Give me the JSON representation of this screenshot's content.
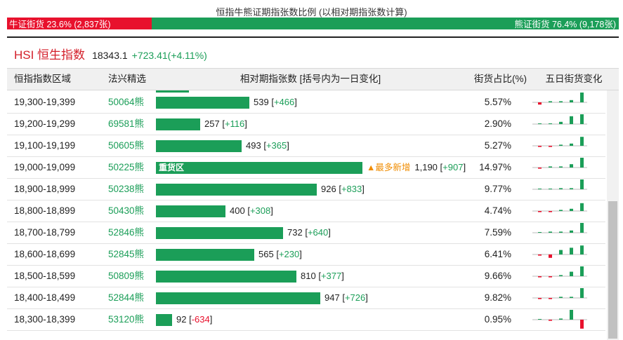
{
  "ratio": {
    "title": "恒指牛熊证期指张数比例 (以相对期指张数计算)",
    "bull_label": "牛证街货 23.6% (2,837张)",
    "bear_label": "熊证街货 76.4% (9,178张)",
    "bull_share": 0.236,
    "colors": {
      "bull": "#e8112d",
      "bear": "#1b9e58"
    }
  },
  "index": {
    "name": "HSI 恒生指数",
    "value": "18343.1",
    "change": "+723.41(+4.11%)"
  },
  "table": {
    "headers": {
      "range": "恒指指数区域",
      "code": "法兴精选",
      "count": "相对期指张数 [括号内为一日变化]",
      "share": "街货占比(%)",
      "spark": "五日街货变化"
    },
    "max_contracts": 1190,
    "rows": [
      {
        "range": "19,300-19,399",
        "code": "50064熊",
        "contracts": 539,
        "contracts_label": "539",
        "change": "+466",
        "share": "5.57%",
        "spark": [
          -2,
          1,
          1,
          2,
          9
        ]
      },
      {
        "range": "19,200-19,299",
        "code": "69581熊",
        "contracts": 257,
        "contracts_label": "257",
        "change": "+116",
        "share": "2.90%",
        "spark": [
          0,
          0,
          2,
          7,
          9
        ]
      },
      {
        "range": "19,100-19,199",
        "code": "50605熊",
        "contracts": 493,
        "contracts_label": "493",
        "change": "+365",
        "share": "5.27%",
        "spark": [
          -1,
          -1,
          1,
          2,
          8
        ]
      },
      {
        "range": "19,000-19,099",
        "code": "50225熊",
        "contracts": 1190,
        "contracts_label": "1,190",
        "change": "+907",
        "share": "14.97%",
        "heavy_label": "重货区",
        "tag": "▲最多新增",
        "spark": [
          -1,
          1,
          1,
          3,
          9
        ]
      },
      {
        "range": "18,900-18,999",
        "code": "50238熊",
        "contracts": 926,
        "contracts_label": "926",
        "change": "+833",
        "share": "9.77%",
        "spark": [
          0,
          0,
          1,
          1,
          9
        ]
      },
      {
        "range": "18,800-18,899",
        "code": "50430熊",
        "contracts": 400,
        "contracts_label": "400",
        "change": "+308",
        "share": "4.74%",
        "spark": [
          -1,
          -1,
          1,
          2,
          7
        ]
      },
      {
        "range": "18,700-18,799",
        "code": "52846熊",
        "contracts": 732,
        "contracts_label": "732",
        "change": "+640",
        "share": "7.59%",
        "spark": [
          0,
          1,
          1,
          2,
          9
        ]
      },
      {
        "range": "18,600-18,699",
        "code": "52845熊",
        "contracts": 565,
        "contracts_label": "565",
        "change": "+230",
        "share": "6.41%",
        "spark": [
          -1,
          -3,
          4,
          6,
          8
        ]
      },
      {
        "range": "18,500-18,599",
        "code": "50809熊",
        "contracts": 810,
        "contracts_label": "810",
        "change": "+377",
        "share": "9.66%",
        "spark": [
          -1,
          -1,
          1,
          4,
          9
        ]
      },
      {
        "range": "18,400-18,499",
        "code": "52844熊",
        "contracts": 947,
        "contracts_label": "947",
        "change": "+726",
        "share": "9.82%",
        "spark": [
          -1,
          -1,
          1,
          1,
          9
        ]
      },
      {
        "range": "18,300-18,399",
        "code": "53120熊",
        "contracts": 92,
        "contracts_label": "92",
        "change": "-634",
        "share": "0.95%",
        "spark": [
          0,
          -1,
          1,
          9,
          -8
        ]
      }
    ]
  }
}
